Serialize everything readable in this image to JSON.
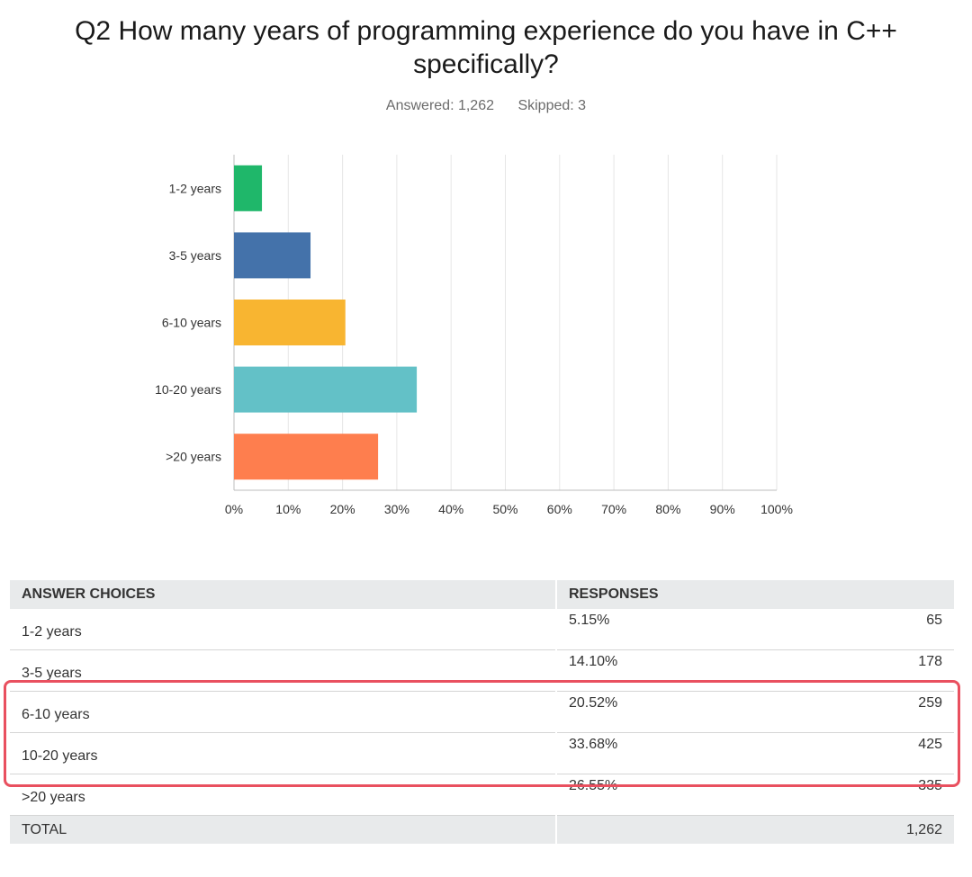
{
  "question": {
    "title": "Q2 How many years of programming experience do you have in C++ specifically?"
  },
  "stats": {
    "answered": "Answered: 1,262",
    "skipped": "Skipped: 3"
  },
  "chart_data": {
    "type": "bar",
    "orientation": "horizontal",
    "categories": [
      "1-2 years",
      "3-5 years",
      "6-10 years",
      "10-20 years",
      ">20 years"
    ],
    "values": [
      5.15,
      14.1,
      20.52,
      33.68,
      26.55
    ],
    "colors": [
      "#1fb76a",
      "#4472aa",
      "#f8b531",
      "#63c1c7",
      "#fe7e4e"
    ],
    "xlim": [
      0,
      100
    ],
    "x_ticks": [
      "0%",
      "10%",
      "20%",
      "30%",
      "40%",
      "50%",
      "60%",
      "70%",
      "80%",
      "90%",
      "100%"
    ],
    "grid": true
  },
  "table": {
    "headers": {
      "choices": "ANSWER CHOICES",
      "responses": "RESPONSES"
    },
    "rows": [
      {
        "choice": "1-2 years",
        "percent": "5.15%",
        "count": "65"
      },
      {
        "choice": "3-5 years",
        "percent": "14.10%",
        "count": "178"
      },
      {
        "choice": "6-10 years",
        "percent": "20.52%",
        "count": "259"
      },
      {
        "choice": "10-20 years",
        "percent": "33.68%",
        "count": "425"
      },
      {
        "choice": ">20 years",
        "percent": "26.55%",
        "count": "335"
      }
    ],
    "total": {
      "label": "TOTAL",
      "count": "1,262"
    }
  },
  "highlight_color": "#e9505f"
}
